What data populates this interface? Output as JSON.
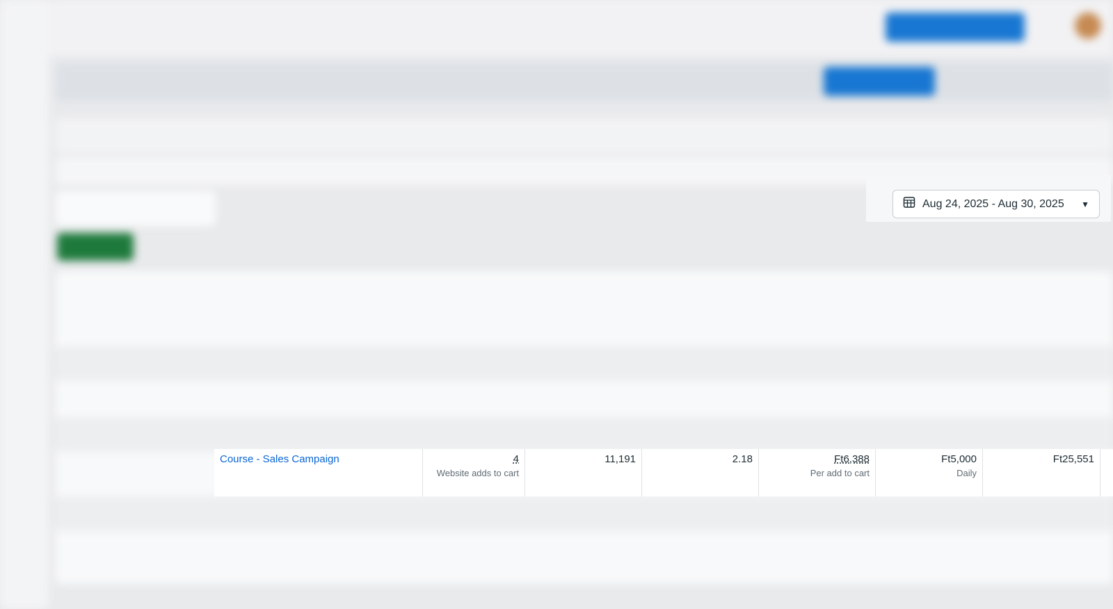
{
  "date_range": {
    "label": "Aug 24, 2025 - Aug 30, 2025",
    "icon": "calendar-icon",
    "chevron": "caret-down-icon"
  },
  "highlighted_row": {
    "campaign_name": "Course - Sales Campaign",
    "results": "4",
    "results_label": "Website adds to cart",
    "reach": "11,191",
    "frequency": "2.18",
    "cost_per_result": "Ft6,388",
    "cost_per_result_label": "Per add to cart",
    "budget": "Ft5,000",
    "budget_label": "Daily",
    "amount_spent": "Ft25,551"
  },
  "colors": {
    "accent": "#0a66d6",
    "create_button": "#1e7a3c"
  }
}
